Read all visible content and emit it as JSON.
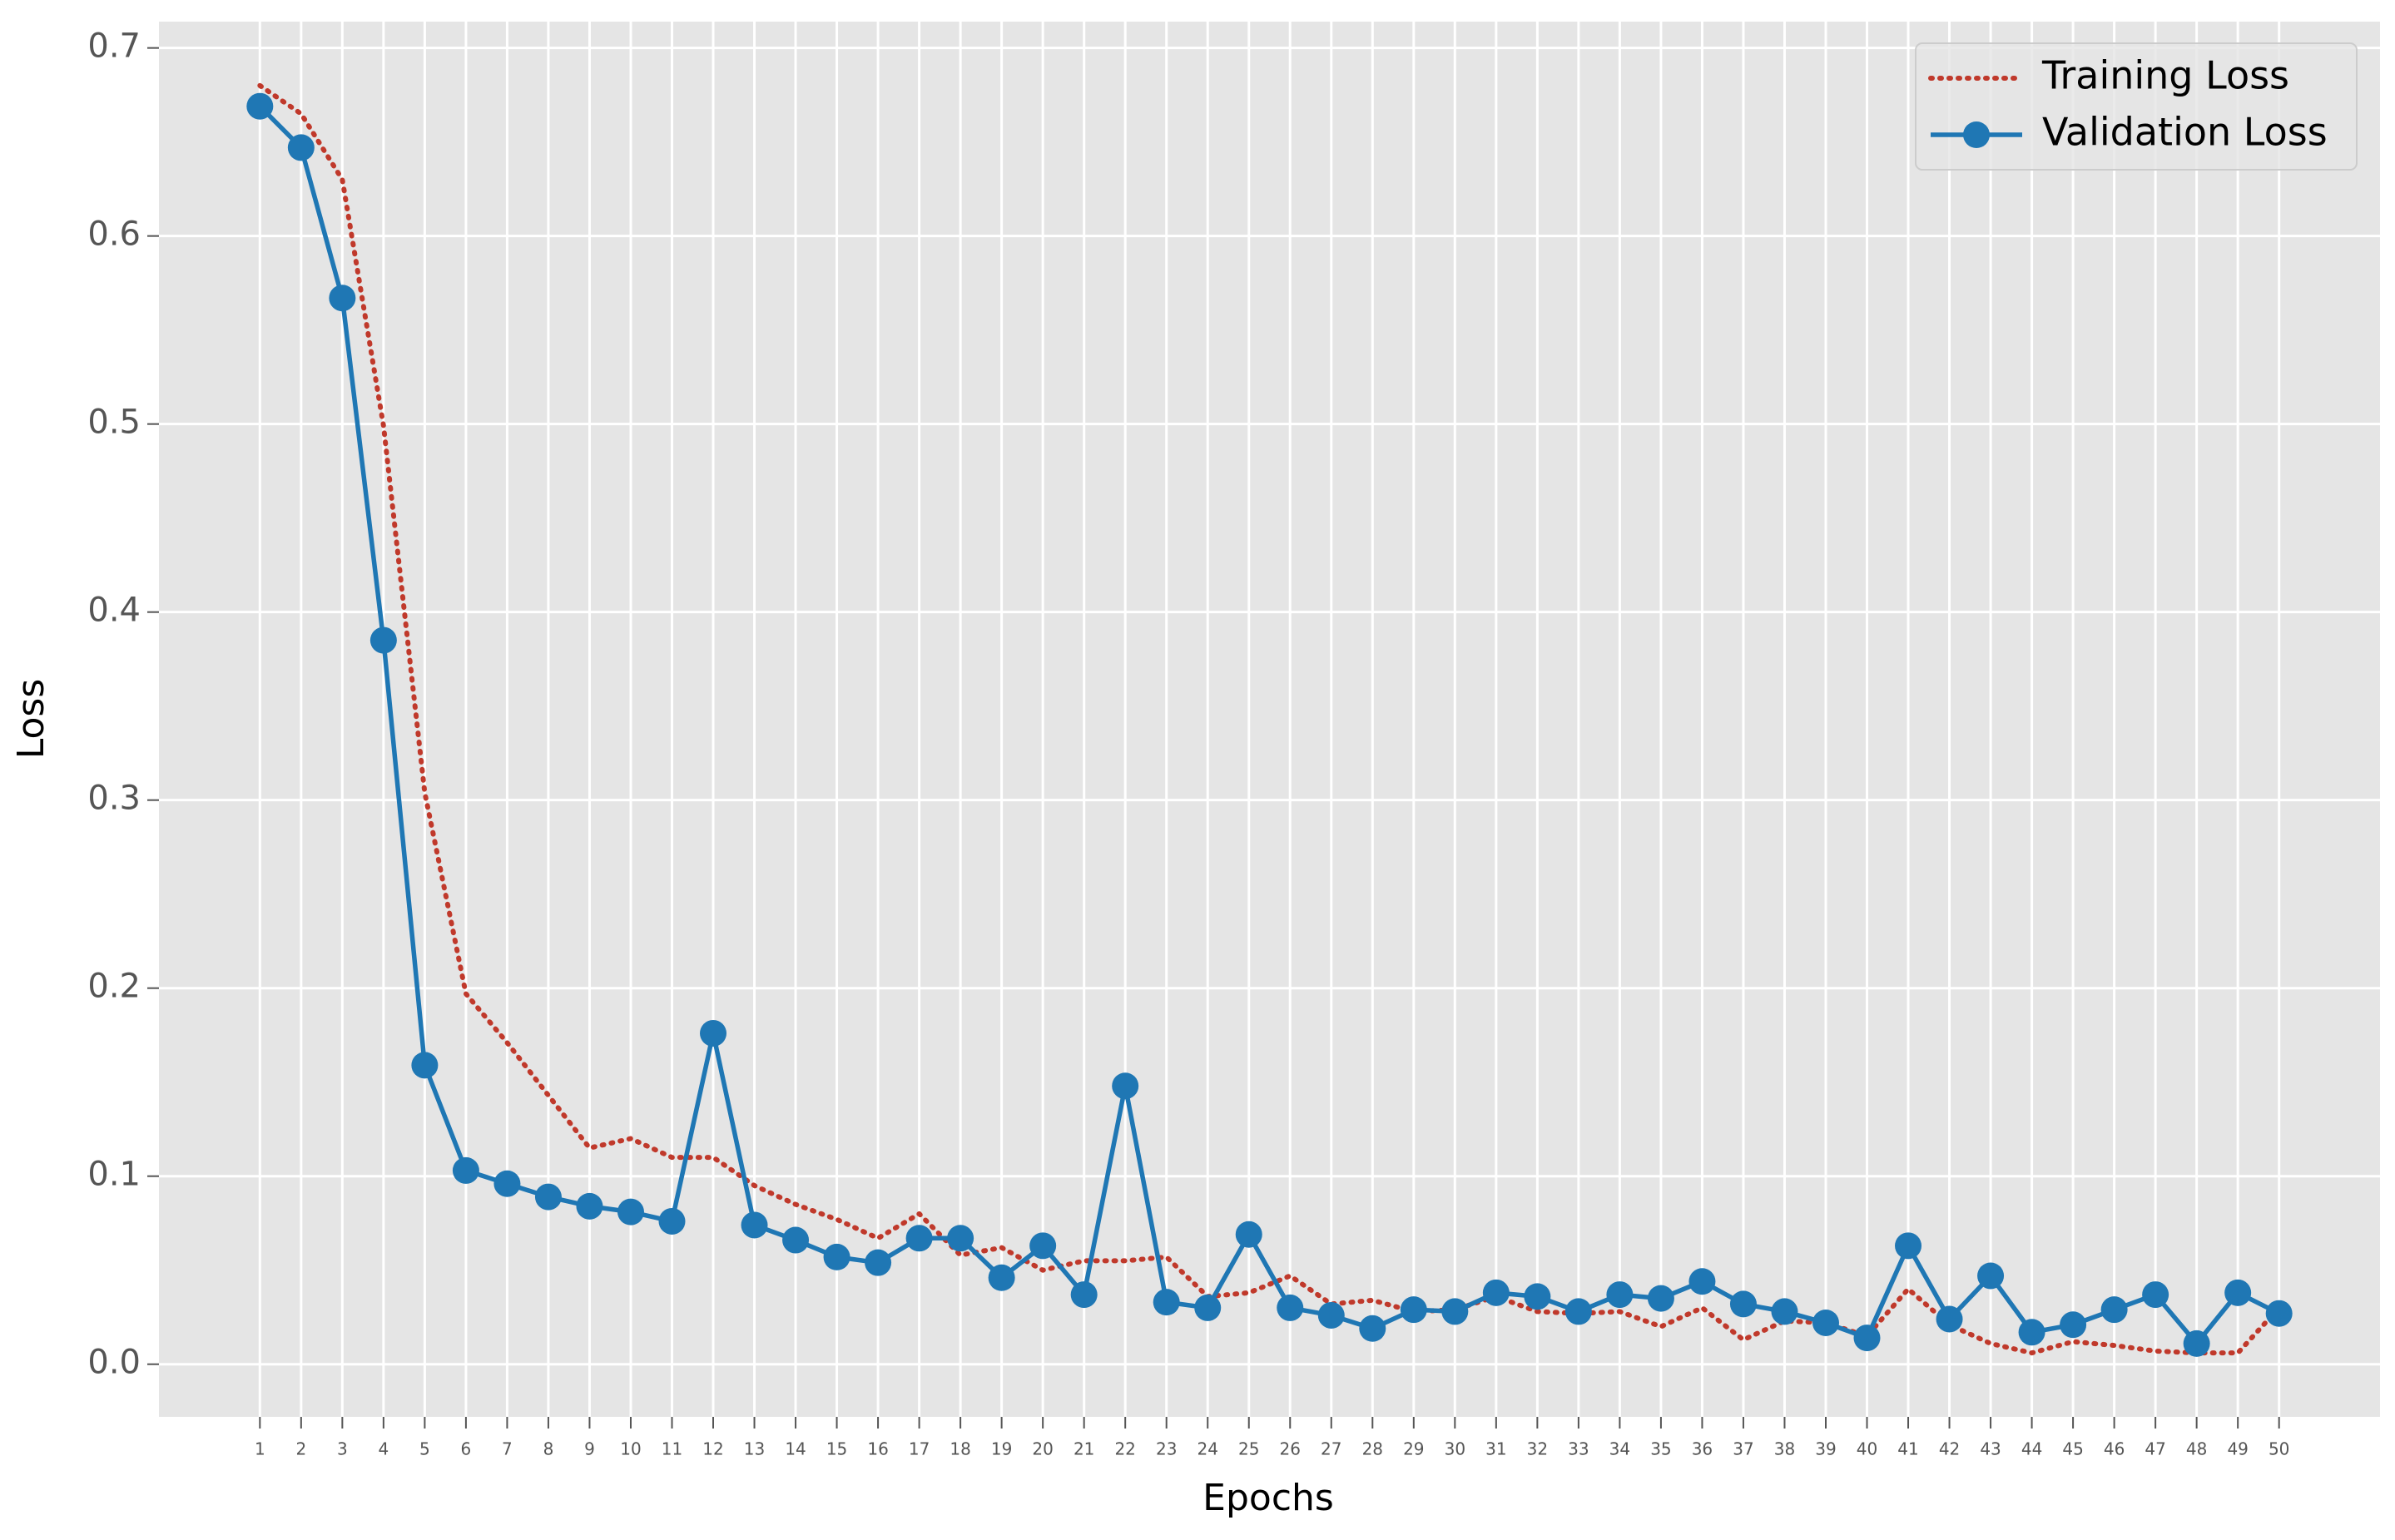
{
  "chart_data": {
    "type": "line",
    "x_label": "Epochs",
    "y_label": "Loss",
    "x": [
      1,
      2,
      3,
      4,
      5,
      6,
      7,
      8,
      9,
      10,
      11,
      12,
      13,
      14,
      15,
      16,
      17,
      18,
      19,
      20,
      21,
      22,
      23,
      24,
      25,
      26,
      27,
      28,
      29,
      30,
      31,
      32,
      33,
      34,
      35,
      36,
      37,
      38,
      39,
      40,
      41,
      42,
      43,
      44,
      45,
      46,
      47,
      48,
      49,
      50
    ],
    "series": [
      {
        "name": "Training Loss",
        "color": "#c0392b",
        "style": "dotted",
        "marker": false,
        "values": [
          0.68,
          0.665,
          0.63,
          0.499,
          0.304,
          0.197,
          0.171,
          0.143,
          0.115,
          0.12,
          0.11,
          0.11,
          0.095,
          0.085,
          0.077,
          0.067,
          0.08,
          0.058,
          0.062,
          0.05,
          0.055,
          0.055,
          0.057,
          0.036,
          0.038,
          0.047,
          0.032,
          0.034,
          0.028,
          0.029,
          0.036,
          0.028,
          0.027,
          0.028,
          0.02,
          0.03,
          0.013,
          0.023,
          0.022,
          0.015,
          0.04,
          0.021,
          0.011,
          0.006,
          0.012,
          0.01,
          0.007,
          0.006,
          0.006,
          0.03
        ]
      },
      {
        "name": "Validation Loss",
        "color": "#1f77b4",
        "style": "solid",
        "marker": true,
        "values": [
          0.669,
          0.647,
          0.567,
          0.385,
          0.159,
          0.103,
          0.096,
          0.089,
          0.084,
          0.081,
          0.076,
          0.176,
          0.074,
          0.066,
          0.057,
          0.054,
          0.067,
          0.067,
          0.046,
          0.063,
          0.037,
          0.148,
          0.033,
          0.03,
          0.069,
          0.03,
          0.026,
          0.019,
          0.029,
          0.028,
          0.038,
          0.036,
          0.028,
          0.037,
          0.035,
          0.044,
          0.032,
          0.028,
          0.022,
          0.014,
          0.063,
          0.024,
          0.047,
          0.017,
          0.021,
          0.029,
          0.037,
          0.011,
          0.038,
          0.027
        ]
      }
    ],
    "xlim": [
      -1.45,
      52.45
    ],
    "ylim": [
      -0.028,
      0.714
    ],
    "xticks": [
      1,
      2,
      3,
      4,
      5,
      6,
      7,
      8,
      9,
      10,
      11,
      12,
      13,
      14,
      15,
      16,
      17,
      18,
      19,
      20,
      21,
      22,
      23,
      24,
      25,
      26,
      27,
      28,
      29,
      30,
      31,
      32,
      33,
      34,
      35,
      36,
      37,
      38,
      39,
      40,
      41,
      42,
      43,
      44,
      45,
      46,
      47,
      48,
      49,
      50
    ],
    "yticks": [
      {
        "value": 0,
        "label": "0.0"
      },
      0.1,
      0.2,
      0.3,
      0.4,
      0.5,
      0.6,
      0.7
    ],
    "grid": true,
    "legend": "upper right"
  }
}
